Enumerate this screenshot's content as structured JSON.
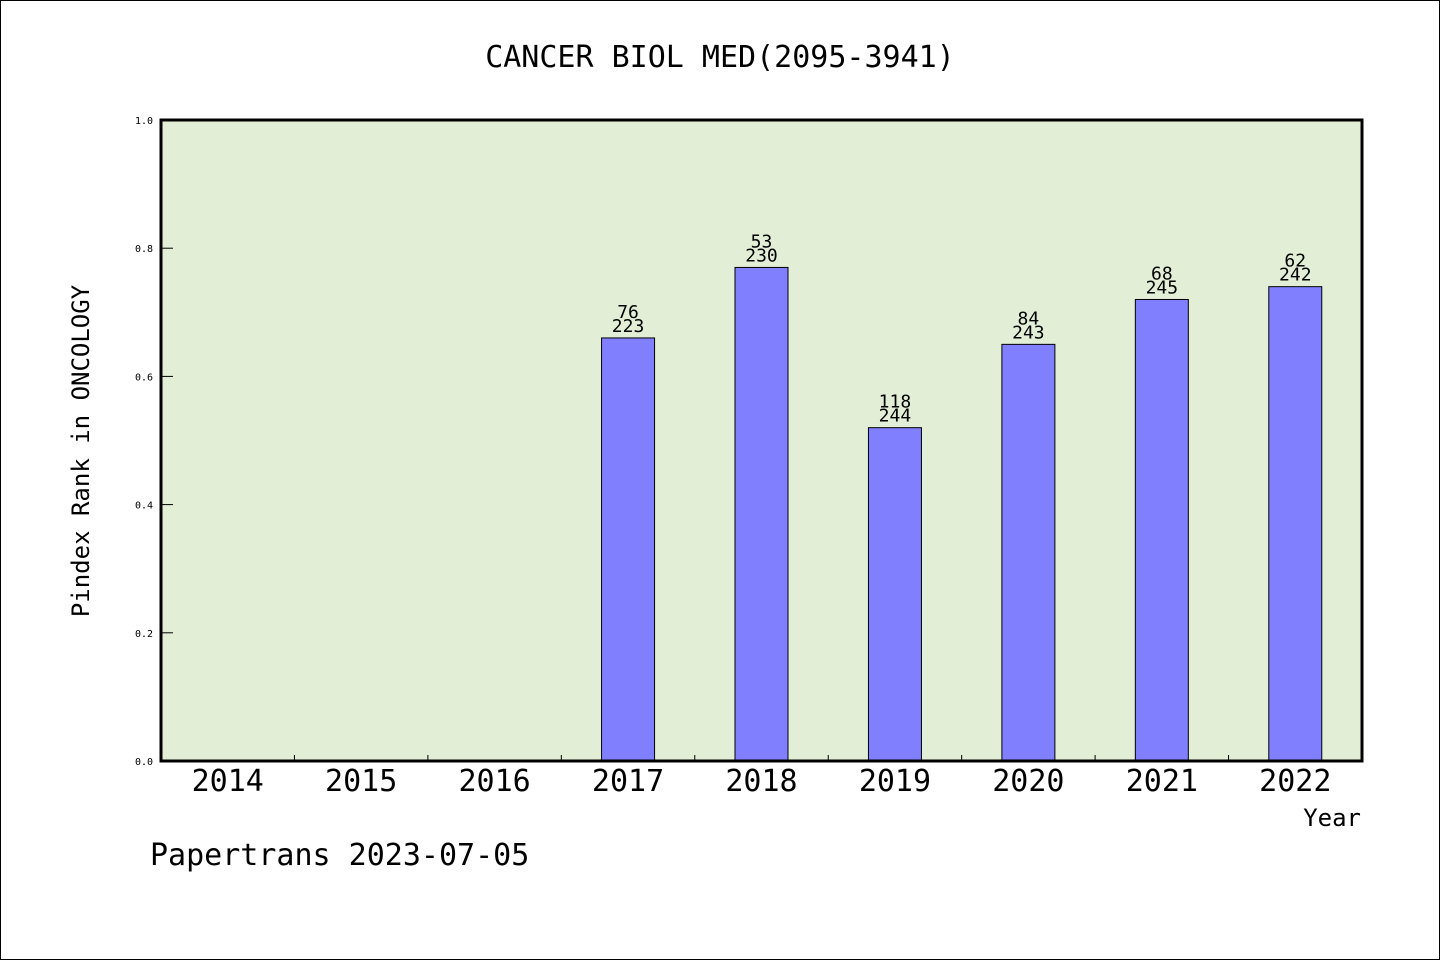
{
  "chart_data": {
    "type": "bar",
    "title": "CANCER BIOL MED(2095-3941)",
    "xlabel": "Year",
    "ylabel": "Pindex Rank in ONCOLOGY",
    "ylim": [
      0,
      1.0
    ],
    "yticks": [
      "0.0",
      "0.2",
      "0.4",
      "0.6",
      "0.8",
      "1.0"
    ],
    "categories": [
      "2014",
      "2015",
      "2016",
      "2017",
      "2018",
      "2019",
      "2020",
      "2021",
      "2022"
    ],
    "values": [
      null,
      null,
      null,
      0.66,
      0.77,
      0.52,
      0.65,
      0.72,
      0.74
    ],
    "labels_rank": [
      null,
      null,
      null,
      "76",
      "53",
      "118",
      "84",
      "68",
      "62"
    ],
    "labels_total": [
      null,
      null,
      null,
      "223",
      "230",
      "244",
      "243",
      "245",
      "242"
    ],
    "grid": false,
    "colors": {
      "plot_bg": "#e2efd6",
      "bar": "#8080ff"
    }
  },
  "footer": "Papertrans 2023-07-05"
}
